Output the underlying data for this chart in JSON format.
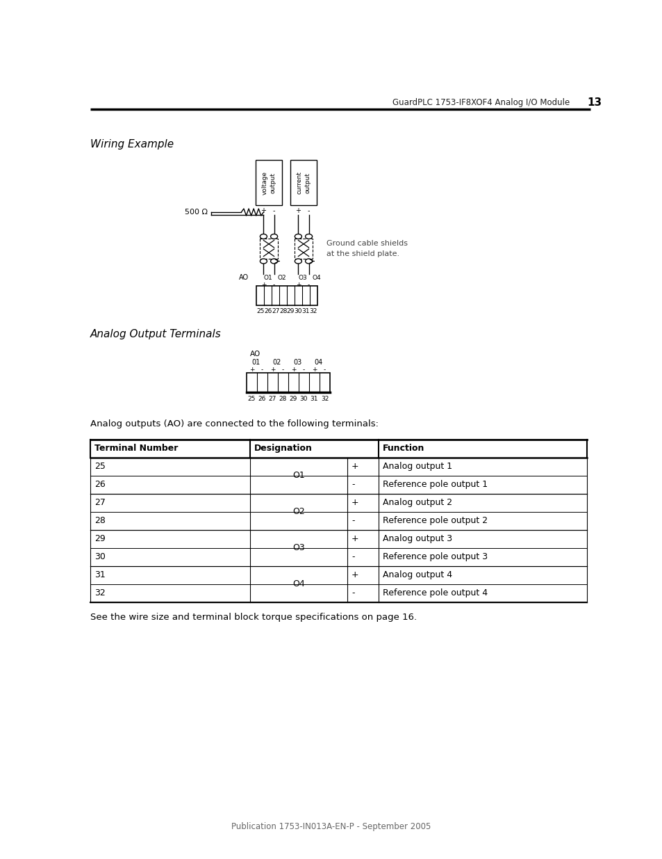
{
  "header_text": "GuardPLC 1753-IF8XOF4 Analog I/O Module",
  "header_page": "13",
  "section1_title": "Wiring Example",
  "section2_title": "Analog Output Terminals",
  "body_text": "Analog outputs (AO) are connected to the following terminals:",
  "footer_text": "Publication 1753-IN013A-EN-P - September 2005",
  "wiring_note_line1": "Ground cable shields",
  "wiring_note_line2": "at the shield plate.",
  "resistor_label": "500 Ω",
  "ao_label": "AO",
  "terminal_numbers": [
    "25",
    "26",
    "27",
    "28",
    "29",
    "30",
    "31",
    "32"
  ],
  "ao_channels": [
    "01",
    "02",
    "03",
    "04"
  ],
  "table_headers": [
    "Terminal Number",
    "Designation",
    "Function"
  ],
  "table_rows": [
    [
      "25",
      "O1",
      "+",
      "Analog output 1"
    ],
    [
      "26",
      "O1",
      "-",
      "Reference pole output 1"
    ],
    [
      "27",
      "O2",
      "+",
      "Analog output 2"
    ],
    [
      "28",
      "O2",
      "-",
      "Reference pole output 2"
    ],
    [
      "29",
      "O3",
      "+",
      "Analog output 3"
    ],
    [
      "30",
      "O3",
      "-",
      "Reference pole output 3"
    ],
    [
      "31",
      "O4",
      "+",
      "Analog output 4"
    ],
    [
      "32",
      "O4",
      "-",
      "Reference pole output 4"
    ]
  ],
  "bg_color": "#ffffff",
  "text_color": "#000000"
}
